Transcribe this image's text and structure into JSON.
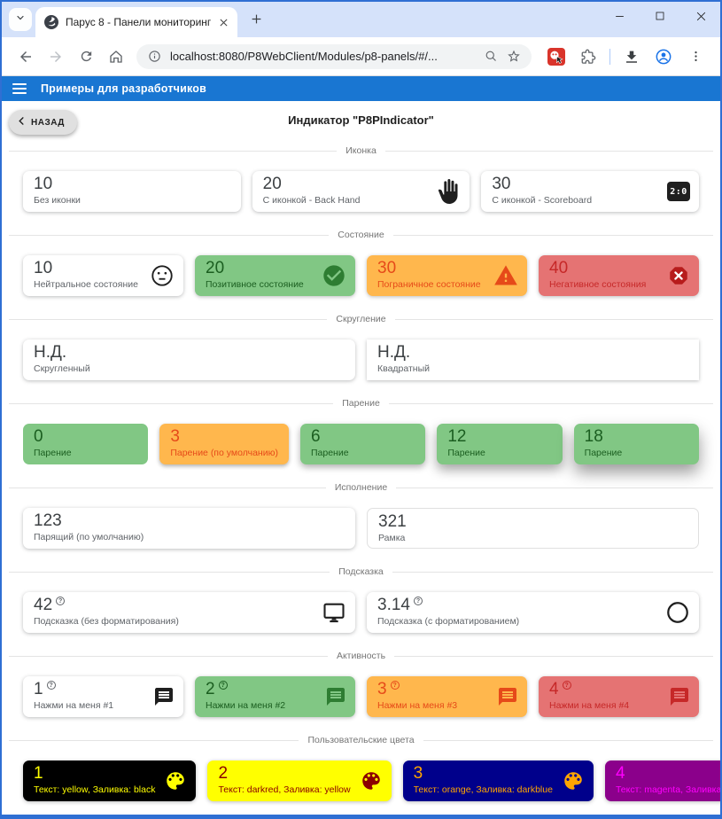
{
  "browser": {
    "tab_title": "Парус 8 - Панели мониторинг",
    "url": "localhost:8080/P8WebClient/Modules/p8-panels/#/..."
  },
  "app_bar": {
    "title": "Примеры для разработчиков"
  },
  "page": {
    "back_label": "НАЗАД",
    "title": "Индикатор \"P8PIndicator\""
  },
  "icons": {
    "scoreboard_text": "2:0"
  },
  "colors": {
    "frame": "#2f6fd3",
    "tabstrip_bg": "#d5e2fa",
    "app_bar_bg": "#1976d2",
    "positive_bg": "#81c784",
    "warning_bg": "#ffb74d",
    "negative_bg": "#e57373"
  },
  "sections": [
    {
      "label": "Иконка",
      "columns": 3,
      "cards": [
        {
          "value": "10",
          "label": "Без иконки"
        },
        {
          "value": "20",
          "label": "С иконкой - Back Hand",
          "icon": "back-hand-icon",
          "icon_color": "#1f1f1f"
        },
        {
          "value": "30",
          "label": "С иконкой - Scoreboard",
          "icon": "scoreboard-icon",
          "icon_color": "#1f1f1f"
        }
      ]
    },
    {
      "label": "Состояние",
      "columns": 4,
      "cards": [
        {
          "value": "10",
          "label": "Нейтральное состояние",
          "icon": "sentiment-neutral-icon",
          "icon_color": "#1f1f1f"
        },
        {
          "value": "20",
          "label": "Позитивное состояние",
          "bg": "#81c784",
          "value_color": "#1b5e20",
          "label_color": "#1b5e20",
          "icon": "check-circle-icon",
          "icon_color": "#2e7d32"
        },
        {
          "value": "30",
          "label": "Пограничное состояние",
          "bg": "#ffb74d",
          "value_color": "#e64a19",
          "label_color": "#e64a19",
          "icon": "warning-icon",
          "icon_color": "#e64a19"
        },
        {
          "value": "40",
          "label": "Негативное состояния",
          "bg": "#e57373",
          "value_color": "#c62828",
          "label_color": "#c62828",
          "icon": "cancel-icon",
          "icon_color": "#b71c1c"
        }
      ]
    },
    {
      "label": "Скругление",
      "columns": 2,
      "cards": [
        {
          "value": "Н.Д.",
          "label": "Скругленный"
        },
        {
          "value": "Н.Д.",
          "label": "Квадратный",
          "square": true
        }
      ]
    },
    {
      "label": "Парение",
      "columns": 5,
      "cards": [
        {
          "value": "0",
          "label": "Парение",
          "bg": "#81c784",
          "value_color": "#1b5e20",
          "label_color": "#1b5e20",
          "elevation": 0
        },
        {
          "value": "3",
          "label": "Парение (по умолчанию)",
          "bg": "#ffb74d",
          "value_color": "#e64a19",
          "label_color": "#e64a19",
          "elevation": 3
        },
        {
          "value": "6",
          "label": "Парение",
          "bg": "#81c784",
          "value_color": "#1b5e20",
          "label_color": "#1b5e20",
          "elevation": 6
        },
        {
          "value": "12",
          "label": "Парение",
          "bg": "#81c784",
          "value_color": "#1b5e20",
          "label_color": "#1b5e20",
          "elevation": 12
        },
        {
          "value": "18",
          "label": "Парение",
          "bg": "#81c784",
          "value_color": "#1b5e20",
          "label_color": "#1b5e20",
          "elevation": 18
        }
      ]
    },
    {
      "label": "Исполнение",
      "columns": 2,
      "cards": [
        {
          "value": "123",
          "label": "Парящий (по умолчанию)"
        },
        {
          "value": "321",
          "label": "Рамка",
          "outlined": true
        }
      ]
    },
    {
      "label": "Подсказка",
      "columns": 2,
      "cards": [
        {
          "value": "42",
          "label": "Подсказка (без форматирования)",
          "help": true,
          "icon": "monitor-icon",
          "icon_color": "#1f1f1f"
        },
        {
          "value": "3.14",
          "label": "Подсказка (с форматированием)",
          "help": true,
          "icon": "circle-icon",
          "icon_color": "#1f1f1f"
        }
      ]
    },
    {
      "label": "Активность",
      "columns": 4,
      "cards": [
        {
          "value": "1",
          "label": "Нажми на меня #1",
          "help": true,
          "icon": "message-icon",
          "icon_color": "#1f1f1f",
          "clickable": true
        },
        {
          "value": "2",
          "label": "Нажми на меня #2",
          "help": true,
          "bg": "#81c784",
          "value_color": "#1b5e20",
          "label_color": "#1b5e20",
          "icon": "message-icon",
          "icon_color": "#2e7d32",
          "clickable": true
        },
        {
          "value": "3",
          "label": "Нажми на меня #3",
          "help": true,
          "bg": "#ffb74d",
          "value_color": "#e64a19",
          "label_color": "#e64a19",
          "icon": "message-icon",
          "icon_color": "#e64a19",
          "clickable": true
        },
        {
          "value": "4",
          "label": "Нажми на меня #4",
          "help": true,
          "bg": "#e57373",
          "value_color": "#c62828",
          "label_color": "#c62828",
          "icon": "message-icon",
          "icon_color": "#c62828",
          "clickable": true
        }
      ]
    },
    {
      "label": "Пользовательские цвета",
      "columns": 4,
      "cards": [
        {
          "value": "1",
          "label": "Текст: yellow, Заливка: black",
          "bg": "#000000",
          "value_color": "#ffff00",
          "label_color": "#ffff00",
          "icon": "palette-icon",
          "icon_color": "#ffff00"
        },
        {
          "value": "2",
          "label": "Текст: darkred, Заливка: yellow",
          "bg": "#ffff00",
          "value_color": "#8b0000",
          "label_color": "#8b0000",
          "icon": "palette-icon",
          "icon_color": "#8b0000"
        },
        {
          "value": "3",
          "label": "Текст: orange, Заливка: darkblue",
          "bg": "#00008b",
          "value_color": "#ffa500",
          "label_color": "#ffa500",
          "icon": "palette-icon",
          "icon_color": "#ffa500"
        },
        {
          "value": "4",
          "label": "Текст: magenta, Заливка: darkmage...",
          "bg": "#8b008b",
          "value_color": "#ff00ff",
          "label_color": "#ff00ff",
          "icon": "palette-icon",
          "icon_color": "#ff00ff"
        }
      ]
    }
  ]
}
